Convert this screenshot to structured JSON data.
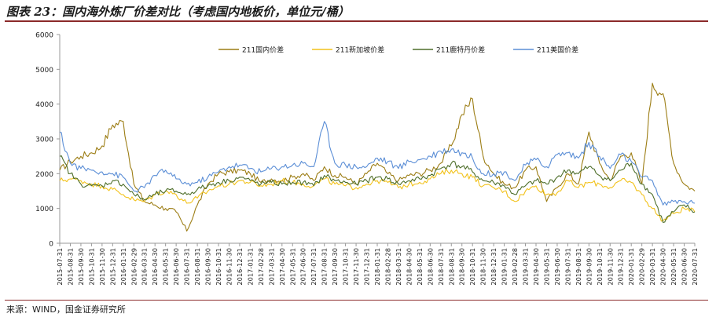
{
  "header": {
    "title": "图表 23：国内海外炼厂价差对比（考虑国内地板价，单位元/桶）"
  },
  "footer": {
    "source": "来源：WIND，国金证券研究所"
  },
  "chart_data": {
    "type": "line",
    "title": "",
    "xlabel": "",
    "ylabel": "",
    "ylim": [
      0,
      6000
    ],
    "yticks": [
      0,
      1000,
      2000,
      3000,
      4000,
      5000,
      6000
    ],
    "grid": false,
    "legend_position": "top-center",
    "x_tick_labels": [
      "2015-07-31",
      "2015-08-31",
      "2015-09-30",
      "2015-10-31",
      "2015-11-30",
      "2015-12-31",
      "2016-01-31",
      "2016-02-29",
      "2016-03-31",
      "2016-04-30",
      "2016-05-31",
      "2016-06-30",
      "2016-07-31",
      "2016-08-31",
      "2016-09-30",
      "2016-10-31",
      "2016-11-30",
      "2016-12-31",
      "2017-01-31",
      "2017-02-28",
      "2017-03-31",
      "2017-04-30",
      "2017-05-31",
      "2017-06-30",
      "2017-07-31",
      "2017-08-31",
      "2017-09-30",
      "2017-10-31",
      "2017-11-30",
      "2017-12-31",
      "2018-01-31",
      "2018-02-28",
      "2018-03-31",
      "2018-04-30",
      "2018-05-31",
      "2018-06-30",
      "2018-07-31",
      "2018-08-31",
      "2018-09-30",
      "2018-10-31",
      "2018-11-30",
      "2018-12-31",
      "2019-01-31",
      "2019-02-28",
      "2019-03-31",
      "2019-04-30",
      "2019-05-31",
      "2019-06-30",
      "2019-07-31",
      "2019-08-31",
      "2019-09-30",
      "2019-10-31",
      "2019-11-30",
      "2019-12-31",
      "2020-01-31",
      "2020-02-29",
      "2020-03-31",
      "2020-04-30",
      "2020-05-31",
      "2020-06-30",
      "2020-07-31"
    ],
    "series": [
      {
        "name": "211国内价差",
        "color": "#9c7d14",
        "values": [
          2100,
          2350,
          2500,
          2600,
          2800,
          3400,
          3500,
          1700,
          1200,
          1100,
          1000,
          900,
          350,
          1100,
          1700,
          2000,
          2050,
          2100,
          2000,
          1750,
          1850,
          1800,
          1900,
          2000,
          1800,
          2200,
          1950,
          1900,
          1700,
          2000,
          2300,
          2000,
          1800,
          1950,
          2000,
          2100,
          2300,
          2800,
          3700,
          4150,
          2500,
          2000,
          1700,
          1600,
          2100,
          2200,
          1200,
          1600,
          2000,
          1700,
          3200,
          2300,
          1800,
          2500,
          2600,
          1700,
          4600,
          4300,
          2300,
          1700,
          1500
        ]
      },
      {
        "name": "211新加坡价差",
        "color": "#f2c21b",
        "values": [
          1800,
          1850,
          1800,
          1700,
          1650,
          1550,
          1400,
          1250,
          1200,
          1400,
          1500,
          1400,
          1150,
          1300,
          1500,
          1650,
          1700,
          1800,
          1750,
          1650,
          1700,
          1800,
          1750,
          1700,
          1650,
          1850,
          1700,
          1650,
          1600,
          1700,
          1800,
          1750,
          1600,
          1700,
          1750,
          1850,
          2000,
          2100,
          2000,
          1900,
          1650,
          1600,
          1500,
          1200,
          1500,
          1650,
          1400,
          1450,
          1800,
          1600,
          1750,
          1700,
          1600,
          1800,
          1750,
          1400,
          1000,
          650,
          850,
          1000,
          900
        ]
      },
      {
        "name": "211鹿特丹价差",
        "color": "#4e6e2a",
        "values": [
          2500,
          2000,
          1700,
          1650,
          1650,
          1800,
          1700,
          1400,
          1250,
          1400,
          1500,
          1500,
          1400,
          1550,
          1650,
          1750,
          1800,
          1900,
          1800,
          1700,
          1750,
          1700,
          1750,
          1750,
          1650,
          1950,
          1800,
          1750,
          1700,
          1800,
          1900,
          1850,
          1700,
          1800,
          1850,
          1950,
          2150,
          2300,
          2200,
          2050,
          1800,
          1750,
          1650,
          1400,
          1650,
          1800,
          1700,
          1900,
          2100,
          2000,
          2200,
          1950,
          1800,
          2100,
          2300,
          1700,
          1400,
          600,
          900,
          1100,
          900
        ]
      },
      {
        "name": "211美国价差",
        "color": "#5b8ed6",
        "values": [
          3200,
          2300,
          2150,
          2100,
          2050,
          2000,
          1900,
          1500,
          1600,
          1950,
          2100,
          1850,
          1700,
          1750,
          1900,
          2050,
          2200,
          2250,
          2150,
          2050,
          2150,
          2200,
          2250,
          2300,
          2200,
          3500,
          2300,
          2250,
          2200,
          2200,
          2450,
          2350,
          2150,
          2350,
          2400,
          2500,
          2650,
          2700,
          2600,
          2450,
          2000,
          2000,
          2050,
          1800,
          2250,
          2400,
          2200,
          2550,
          2600,
          2450,
          2900,
          2500,
          2150,
          2550,
          2350,
          1900,
          1800,
          1100,
          1200,
          1200,
          1150
        ]
      }
    ]
  }
}
